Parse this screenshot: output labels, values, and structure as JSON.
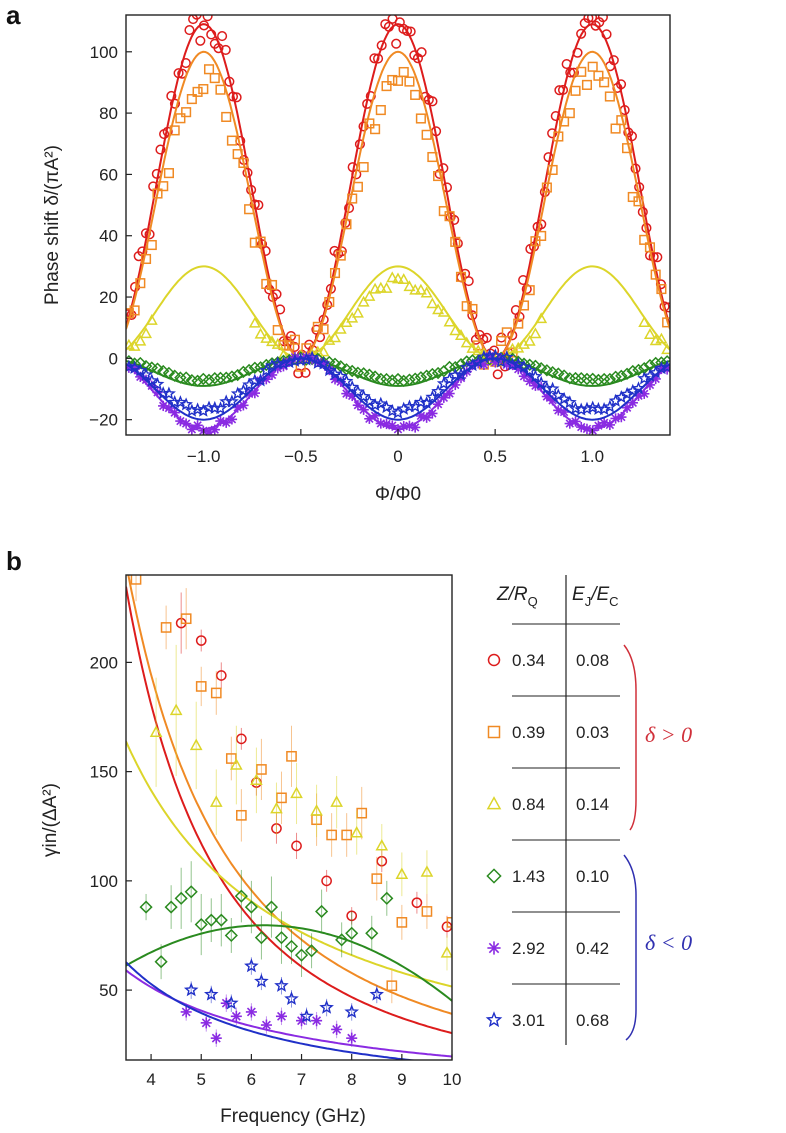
{
  "panel_a_label": "a",
  "panel_b_label": "b",
  "colors": {
    "red": "#dd1c1c",
    "orange": "#f08a24",
    "yellow": "#dcd52a",
    "green": "#2a8a1f",
    "purple": "#8a2be2",
    "blue": "#2030c8",
    "pos_brace": "#d0303a",
    "neg_brace": "#3030b0"
  },
  "chart_data": [
    {
      "type": "scatter",
      "panel": "a",
      "title": "",
      "xlabel": "Φ/Φ0",
      "ylabel": "Phase shift δ/(πA²)",
      "xlim": [
        -1.4,
        1.4
      ],
      "ylim": [
        -25,
        112
      ],
      "xticks": [
        -1.0,
        -0.5,
        0,
        0.5,
        1.0
      ],
      "xtick_labels": [
        "−1.0",
        "−0.5",
        "0",
        "0.5",
        "1.0"
      ],
      "yticks": [
        -20,
        0,
        20,
        40,
        60,
        80,
        100
      ],
      "ytick_labels": [
        "−20",
        "0",
        "20",
        "40",
        "60",
        "80",
        "100"
      ],
      "series": [
        {
          "name": "0.34 / 0.08",
          "color": "red",
          "marker": "circle",
          "fit_amplitude": 109,
          "data_amplitude": 109
        },
        {
          "name": "0.39 / 0.03",
          "color": "orange",
          "marker": "square",
          "fit_amplitude": 100,
          "data_amplitude": 92
        },
        {
          "name": "0.84 / 0.14",
          "color": "yellow",
          "marker": "triangle",
          "fit_amplitude": 30,
          "data_amplitude": 25
        },
        {
          "name": "1.43 / 0.10",
          "color": "green",
          "marker": "diamond",
          "fit_amplitude": -9,
          "data_amplitude": -7
        },
        {
          "name": "2.92 / 0.42",
          "color": "purple",
          "marker": "asterisk",
          "fit_amplitude": -23,
          "data_amplitude": -23
        },
        {
          "name": "3.01 / 0.68",
          "color": "blue",
          "marker": "star",
          "fit_amplitude": -20,
          "data_amplitude": -17
        }
      ]
    },
    {
      "type": "scatter",
      "panel": "b",
      "title": "",
      "xlabel": "Frequency (GHz)",
      "ylabel": "γin/(ΔA²)",
      "xlim": [
        3.5,
        10
      ],
      "ylim": [
        18,
        240
      ],
      "xticks": [
        4,
        5,
        6,
        7,
        8,
        9,
        10
      ],
      "xtick_labels": [
        "4",
        "5",
        "6",
        "7",
        "8",
        "9",
        "10"
      ],
      "yticks": [
        50,
        100,
        150,
        200
      ],
      "ytick_labels": [
        "50",
        "100",
        "150",
        "200"
      ],
      "series": [
        {
          "name": "0.34 / 0.08",
          "color": "red",
          "marker": "circle",
          "fit_x": [
            3.5,
            10
          ],
          "fit_a": 2700,
          "fit_p": 1.95,
          "points": [
            [
              4.6,
              218,
              14
            ],
            [
              5.0,
              210,
              5
            ],
            [
              5.4,
              194,
              6
            ],
            [
              5.8,
              165,
              5
            ],
            [
              6.1,
              145,
              6
            ],
            [
              6.5,
              124,
              7
            ],
            [
              6.9,
              116,
              6
            ],
            [
              7.5,
              100,
              5
            ],
            [
              8.0,
              84,
              4
            ],
            [
              8.6,
              109,
              5
            ],
            [
              9.3,
              90,
              5
            ],
            [
              9.9,
              79,
              5
            ]
          ]
        },
        {
          "name": "0.39 / 0.03",
          "color": "orange",
          "marker": "square",
          "fit_x": [
            3.5,
            10
          ],
          "fit_a": 2200,
          "fit_p": 1.75,
          "points": [
            [
              3.7,
              238,
              10
            ],
            [
              4.3,
              216,
              10
            ],
            [
              4.7,
              220,
              14
            ],
            [
              5.0,
              189,
              9
            ],
            [
              5.3,
              186,
              10
            ],
            [
              5.6,
              156,
              10
            ],
            [
              5.8,
              130,
              12
            ],
            [
              6.2,
              151,
              14
            ],
            [
              6.6,
              138,
              12
            ],
            [
              6.8,
              157,
              14
            ],
            [
              7.3,
              128,
              12
            ],
            [
              7.6,
              121,
              10
            ],
            [
              7.9,
              121,
              10
            ],
            [
              8.2,
              131,
              12
            ],
            [
              8.5,
              101,
              10
            ],
            [
              8.8,
              52,
              8
            ],
            [
              9.0,
              81,
              8
            ],
            [
              9.5,
              86,
              8
            ],
            [
              10.0,
              81,
              8
            ]
          ]
        },
        {
          "name": "0.84 / 0.14",
          "color": "yellow",
          "marker": "triangle",
          "fit_x": [
            3.5,
            10
          ],
          "fit_a": 650,
          "fit_p": 1.1,
          "points": [
            [
              4.1,
              168,
              25
            ],
            [
              4.5,
              178,
              30
            ],
            [
              4.9,
              162,
              20
            ],
            [
              5.3,
              136,
              15
            ],
            [
              5.7,
              153,
              18
            ],
            [
              6.1,
              146,
              15
            ],
            [
              6.5,
              133,
              12
            ],
            [
              6.9,
              140,
              14
            ],
            [
              7.3,
              132,
              12
            ],
            [
              7.7,
              136,
              12
            ],
            [
              8.1,
              122,
              10
            ],
            [
              8.6,
              116,
              10
            ],
            [
              9.0,
              103,
              10
            ],
            [
              9.5,
              104,
              10
            ],
            [
              9.9,
              67,
              8
            ]
          ]
        },
        {
          "name": "1.43 / 0.10",
          "color": "green",
          "marker": "diamond",
          "fit_x": [
            3.5,
            10
          ],
          "fit_poly": [
            -15.9,
            30.6,
            -2.45
          ],
          "points": [
            [
              3.9,
              88,
              6
            ],
            [
              4.2,
              63,
              8
            ],
            [
              4.4,
              88,
              10
            ],
            [
              4.6,
              92,
              14
            ],
            [
              4.8,
              95,
              14
            ],
            [
              5.0,
              80,
              14
            ],
            [
              5.2,
              82,
              10
            ],
            [
              5.4,
              82,
              12
            ],
            [
              5.6,
              75,
              8
            ],
            [
              5.8,
              93,
              12
            ],
            [
              6.0,
              88,
              12
            ],
            [
              6.2,
              74,
              10
            ],
            [
              6.4,
              88,
              14
            ],
            [
              6.6,
              74,
              12
            ],
            [
              6.8,
              70,
              8
            ],
            [
              7.0,
              66,
              10
            ],
            [
              7.2,
              68,
              8
            ],
            [
              7.4,
              86,
              10
            ],
            [
              7.8,
              73,
              8
            ],
            [
              8.0,
              76,
              10
            ],
            [
              8.4,
              76,
              8
            ],
            [
              8.7,
              92,
              8
            ]
          ]
        },
        {
          "name": "2.92 / 0.42",
          "color": "purple",
          "marker": "asterisk",
          "fit_x": [
            3.5,
            10
          ],
          "fit_a": 220,
          "fit_p": 1.05,
          "points": [
            [
              4.7,
              40,
              4
            ],
            [
              5.1,
              35,
              4
            ],
            [
              5.3,
              28,
              4
            ],
            [
              5.5,
              44,
              4
            ],
            [
              5.7,
              38,
              4
            ],
            [
              6.0,
              40,
              4
            ],
            [
              6.3,
              34,
              4
            ],
            [
              6.6,
              38,
              4
            ],
            [
              7.0,
              36,
              4
            ],
            [
              7.3,
              36,
              4
            ],
            [
              7.7,
              32,
              4
            ],
            [
              8.0,
              28,
              4
            ]
          ]
        },
        {
          "name": "3.01 / 0.68",
          "color": "blue",
          "marker": "star",
          "fit_x": [
            3.5,
            10
          ],
          "fit_a": 320,
          "fit_p": 1.3,
          "points": [
            [
              4.8,
              50,
              4
            ],
            [
              5.2,
              48,
              4
            ],
            [
              5.6,
              44,
              4
            ],
            [
              6.0,
              61,
              4
            ],
            [
              6.2,
              54,
              4
            ],
            [
              6.6,
              52,
              4
            ],
            [
              6.8,
              46,
              4
            ],
            [
              7.1,
              38,
              4
            ],
            [
              7.5,
              42,
              4
            ],
            [
              8.0,
              40,
              4
            ],
            [
              8.5,
              48,
              4
            ]
          ]
        }
      ]
    }
  ],
  "legend_table": {
    "col1_header": "Z/R",
    "col1_sub": "Q",
    "col2_header": "E",
    "col2_sub_1": "J",
    "col2_mid": "/E",
    "col2_sub_2": "C",
    "rows": [
      {
        "z": "0.34",
        "e": "0.08",
        "color": "red",
        "marker": "circle"
      },
      {
        "z": "0.39",
        "e": "0.03",
        "color": "orange",
        "marker": "square"
      },
      {
        "z": "0.84",
        "e": "0.14",
        "color": "yellow",
        "marker": "triangle"
      },
      {
        "z": "1.43",
        "e": "0.10",
        "color": "green",
        "marker": "diamond"
      },
      {
        "z": "2.92",
        "e": "0.42",
        "color": "purple",
        "marker": "asterisk"
      },
      {
        "z": "3.01",
        "e": "0.68",
        "color": "blue",
        "marker": "star"
      }
    ],
    "positive_label": "δ > 0",
    "negative_label": "δ < 0"
  }
}
